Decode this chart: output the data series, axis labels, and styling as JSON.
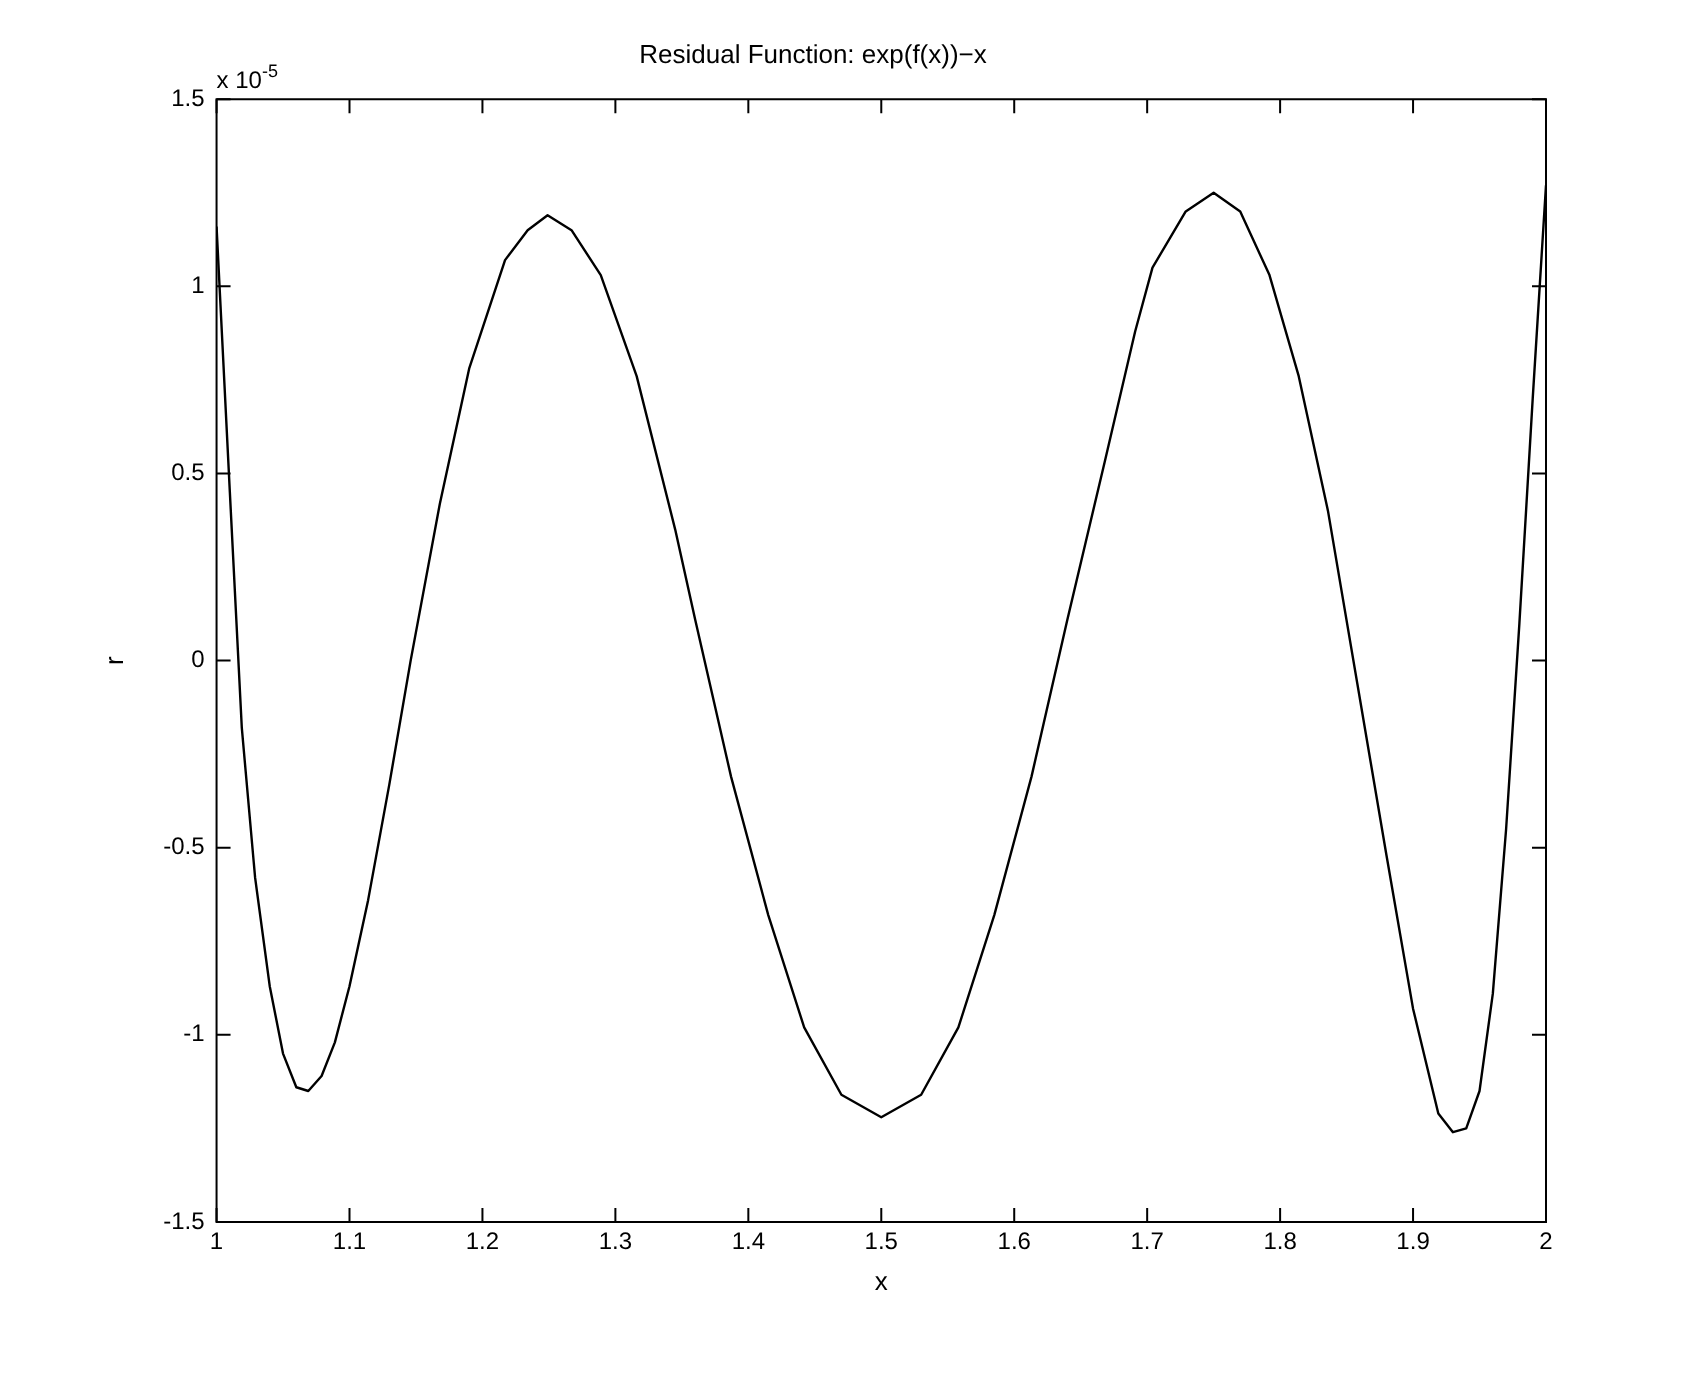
{
  "chart_data": {
    "type": "line",
    "title": "Residual Function: exp(f(x))−x",
    "xlabel": "x",
    "ylabel": "r",
    "annotations": [
      "x 10$^{-5}$"
    ],
    "xlim": [
      1,
      2
    ],
    "xticks": [
      1,
      1.1,
      1.2,
      1.3,
      1.4,
      1.5,
      1.6,
      1.7,
      1.8,
      1.9,
      2
    ],
    "ylim": [
      -1.5,
      1.5
    ],
    "yticks": [
      -1.5,
      -1,
      -0.5,
      0,
      0.5,
      1,
      1.5
    ],
    "grid": false,
    "legend": false,
    "marker": "none",
    "line_style": "solid",
    "series": [
      {
        "color": "#000000",
        "x": [
          1,
          1.01,
          1.019,
          1.029,
          1.04,
          1.05,
          1.06,
          1.069,
          1.079,
          1.089,
          1.1,
          1.114,
          1.13,
          1.146,
          1.168,
          1.19,
          1.217,
          1.234,
          1.249,
          1.267,
          1.289,
          1.316,
          1.345,
          1.36,
          1.387,
          1.415,
          1.442,
          1.47,
          1.5,
          1.53,
          1.558,
          1.585,
          1.613,
          1.64,
          1.668,
          1.691,
          1.704,
          1.729,
          1.75,
          1.77,
          1.792,
          1.814,
          1.836,
          1.858,
          1.88,
          1.9,
          1.919,
          1.93,
          1.94,
          1.95,
          1.96,
          1.97,
          1.98,
          1.99,
          2
        ],
        "values": [
          1.16,
          0.45,
          -0.18,
          -0.58,
          -0.87,
          -1.05,
          -1.14,
          -1.15,
          -1.11,
          -1.02,
          -0.87,
          -0.64,
          -0.33,
          0.0,
          0.42,
          0.78,
          1.07,
          1.15,
          1.19,
          1.15,
          1.03,
          0.76,
          0.35,
          0.11,
          -0.31,
          -0.68,
          -0.98,
          -1.16,
          -1.22,
          -1.16,
          -0.98,
          -0.68,
          -0.31,
          0.11,
          0.53,
          0.88,
          1.05,
          1.2,
          1.25,
          1.2,
          1.03,
          0.76,
          0.4,
          -0.06,
          -0.52,
          -0.93,
          -1.21,
          -1.26,
          -1.25,
          -1.15,
          -0.89,
          -0.45,
          0.1,
          0.7,
          1.27
        ]
      }
    ]
  }
}
